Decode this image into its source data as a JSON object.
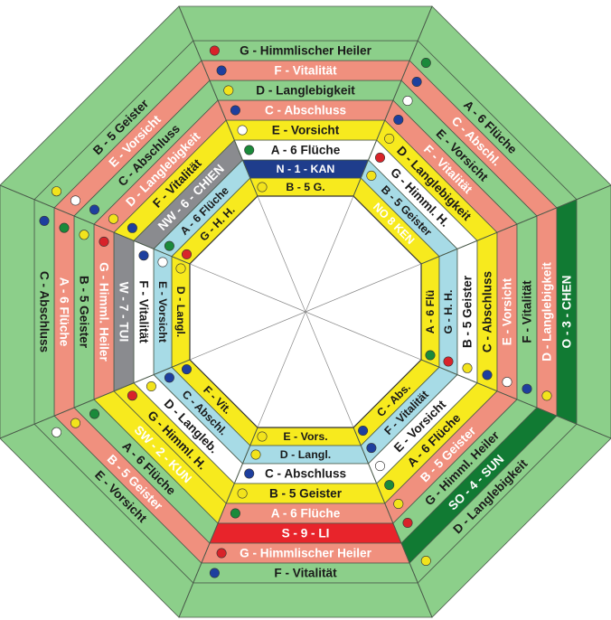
{
  "diagram": {
    "colors": {
      "green": "#8ccf8a",
      "salmon": "#f0907e",
      "yellow": "#f7ea1e",
      "white": "#ffffff",
      "blue": "#a7dbe6",
      "sector_band": {
        "S": "#e8242b",
        "SW": "#f7ea1e",
        "W": "#8a8b8f",
        "NW": "#8a8b8f",
        "N": "#1f3d8c",
        "NO": "#f7ea1e",
        "O": "#117a33",
        "SO": "#117a33"
      },
      "dot": {
        "red": "#d8232a",
        "green": "#1a8a3a",
        "blue": "#1e3f9e",
        "yellow": "#f2e31c",
        "white": "#ffffff"
      }
    },
    "sectors": [
      {
        "key": "S",
        "rings": [
          {
            "text": "E - Vors.",
            "dot": "yellow"
          },
          {
            "text": "D - Langl.",
            "dot": "yellow"
          },
          {
            "text": "C - Abschluss",
            "dot": "blue"
          },
          {
            "text": "B - 5 Geister",
            "dot": "yellow"
          },
          {
            "text": "A - 6 Flüche",
            "dot": "green"
          },
          {
            "text": "S - 9 - LI",
            "dot": ""
          },
          {
            "text": "G - Himmlischer Heiler",
            "dot": "red"
          },
          {
            "text": "F - Vitalität",
            "dot": "blue"
          }
        ]
      },
      {
        "key": "SW",
        "rings": [
          {
            "text": "F - Vit.",
            "dot": "blue"
          },
          {
            "text": "C - Abschl.",
            "dot": "blue"
          },
          {
            "text": "D - Langleb.",
            "dot": "yellow"
          },
          {
            "text": "G - Himml. H.",
            "dot": "red"
          },
          {
            "text": "SW - 2 - KUN",
            "dot": ""
          },
          {
            "text": "A - 6 Flüche",
            "dot": "green"
          },
          {
            "text": "B - 5 Geister",
            "dot": "yellow"
          },
          {
            "text": "E - Vorsicht",
            "dot": "white"
          }
        ]
      },
      {
        "key": "W",
        "rings": [
          {
            "text": "D - Langl.",
            "dot": "yellow"
          },
          {
            "text": "E - Vorsicht",
            "dot": "white"
          },
          {
            "text": "F - Vitalität",
            "dot": "blue"
          },
          {
            "text": "W - 7 - TUI",
            "dot": ""
          },
          {
            "text": "G - Himml. Heiler",
            "dot": "red"
          },
          {
            "text": "B - 5 Geister",
            "dot": "yellow"
          },
          {
            "text": "A - 6 Flüche",
            "dot": "green"
          },
          {
            "text": "C - Abschluss",
            "dot": "blue"
          }
        ]
      },
      {
        "key": "NW",
        "rings": [
          {
            "text": "G - H. H.",
            "dot": "red"
          },
          {
            "text": "A - 6 Flüche",
            "dot": "green"
          },
          {
            "text": "NW - 6 - CHIEN",
            "dot": ""
          },
          {
            "text": "F - Vitalität",
            "dot": "blue"
          },
          {
            "text": "D - Langlebigkeit",
            "dot": "yellow"
          },
          {
            "text": "C - Abschluss",
            "dot": "blue"
          },
          {
            "text": "E - Vorsicht",
            "dot": "white"
          },
          {
            "text": "B - 5 Geister",
            "dot": "yellow"
          }
        ]
      },
      {
        "key": "N",
        "rings": [
          {
            "text": "B - 5 G.",
            "dot": "yellow"
          },
          {
            "text": "N - 1 - KAN",
            "dot": ""
          },
          {
            "text": "A - 6 Flüche",
            "dot": "green"
          },
          {
            "text": "E - Vorsicht",
            "dot": "white"
          },
          {
            "text": "C - Abschluss",
            "dot": "blue"
          },
          {
            "text": "D - Langlebigkeit",
            "dot": "yellow"
          },
          {
            "text": "F - Vitalität",
            "dot": "blue"
          },
          {
            "text": "G - Himmlischer Heiler",
            "dot": "red"
          }
        ]
      },
      {
        "key": "NO",
        "rings": [
          {
            "text": "NO 8 KEN",
            "dot": ""
          },
          {
            "text": "B - 5 Geister",
            "dot": "yellow"
          },
          {
            "text": "G - Himml. H.",
            "dot": "red"
          },
          {
            "text": "D - Langlebigkeit",
            "dot": "yellow"
          },
          {
            "text": "F - Vitalität",
            "dot": "blue"
          },
          {
            "text": "E - Vorsicht",
            "dot": "white"
          },
          {
            "text": "C - Abschl.",
            "dot": "blue"
          },
          {
            "text": "A - 6 Flüche",
            "dot": "green"
          }
        ]
      },
      {
        "key": "O",
        "rings": [
          {
            "text": "A - 6 Flü",
            "dot": "green"
          },
          {
            "text": "G - H. H.",
            "dot": "red"
          },
          {
            "text": "B - 5 Geister",
            "dot": "yellow"
          },
          {
            "text": "C - Abschluss",
            "dot": "blue"
          },
          {
            "text": "E - Vorsicht",
            "dot": "white"
          },
          {
            "text": "F - Vitalität",
            "dot": "blue"
          },
          {
            "text": "D - Langlebigkeit",
            "dot": "yellow"
          },
          {
            "text": "O - 3 - CHEN",
            "dot": ""
          }
        ]
      },
      {
        "key": "SO",
        "rings": [
          {
            "text": "C - Abs.",
            "dot": "blue"
          },
          {
            "text": "F - Vitalität",
            "dot": "blue"
          },
          {
            "text": "E - Vorsicht",
            "dot": "white"
          },
          {
            "text": "A - 6 Flüche",
            "dot": "green"
          },
          {
            "text": "B - 5 Geister",
            "dot": "yellow"
          },
          {
            "text": "G - Himml. Heiler",
            "dot": "red"
          },
          {
            "text": "SO - 4 - SUN",
            "dot": ""
          },
          {
            "text": "D - Langlebigkeit",
            "dot": "yellow"
          }
        ]
      }
    ]
  }
}
